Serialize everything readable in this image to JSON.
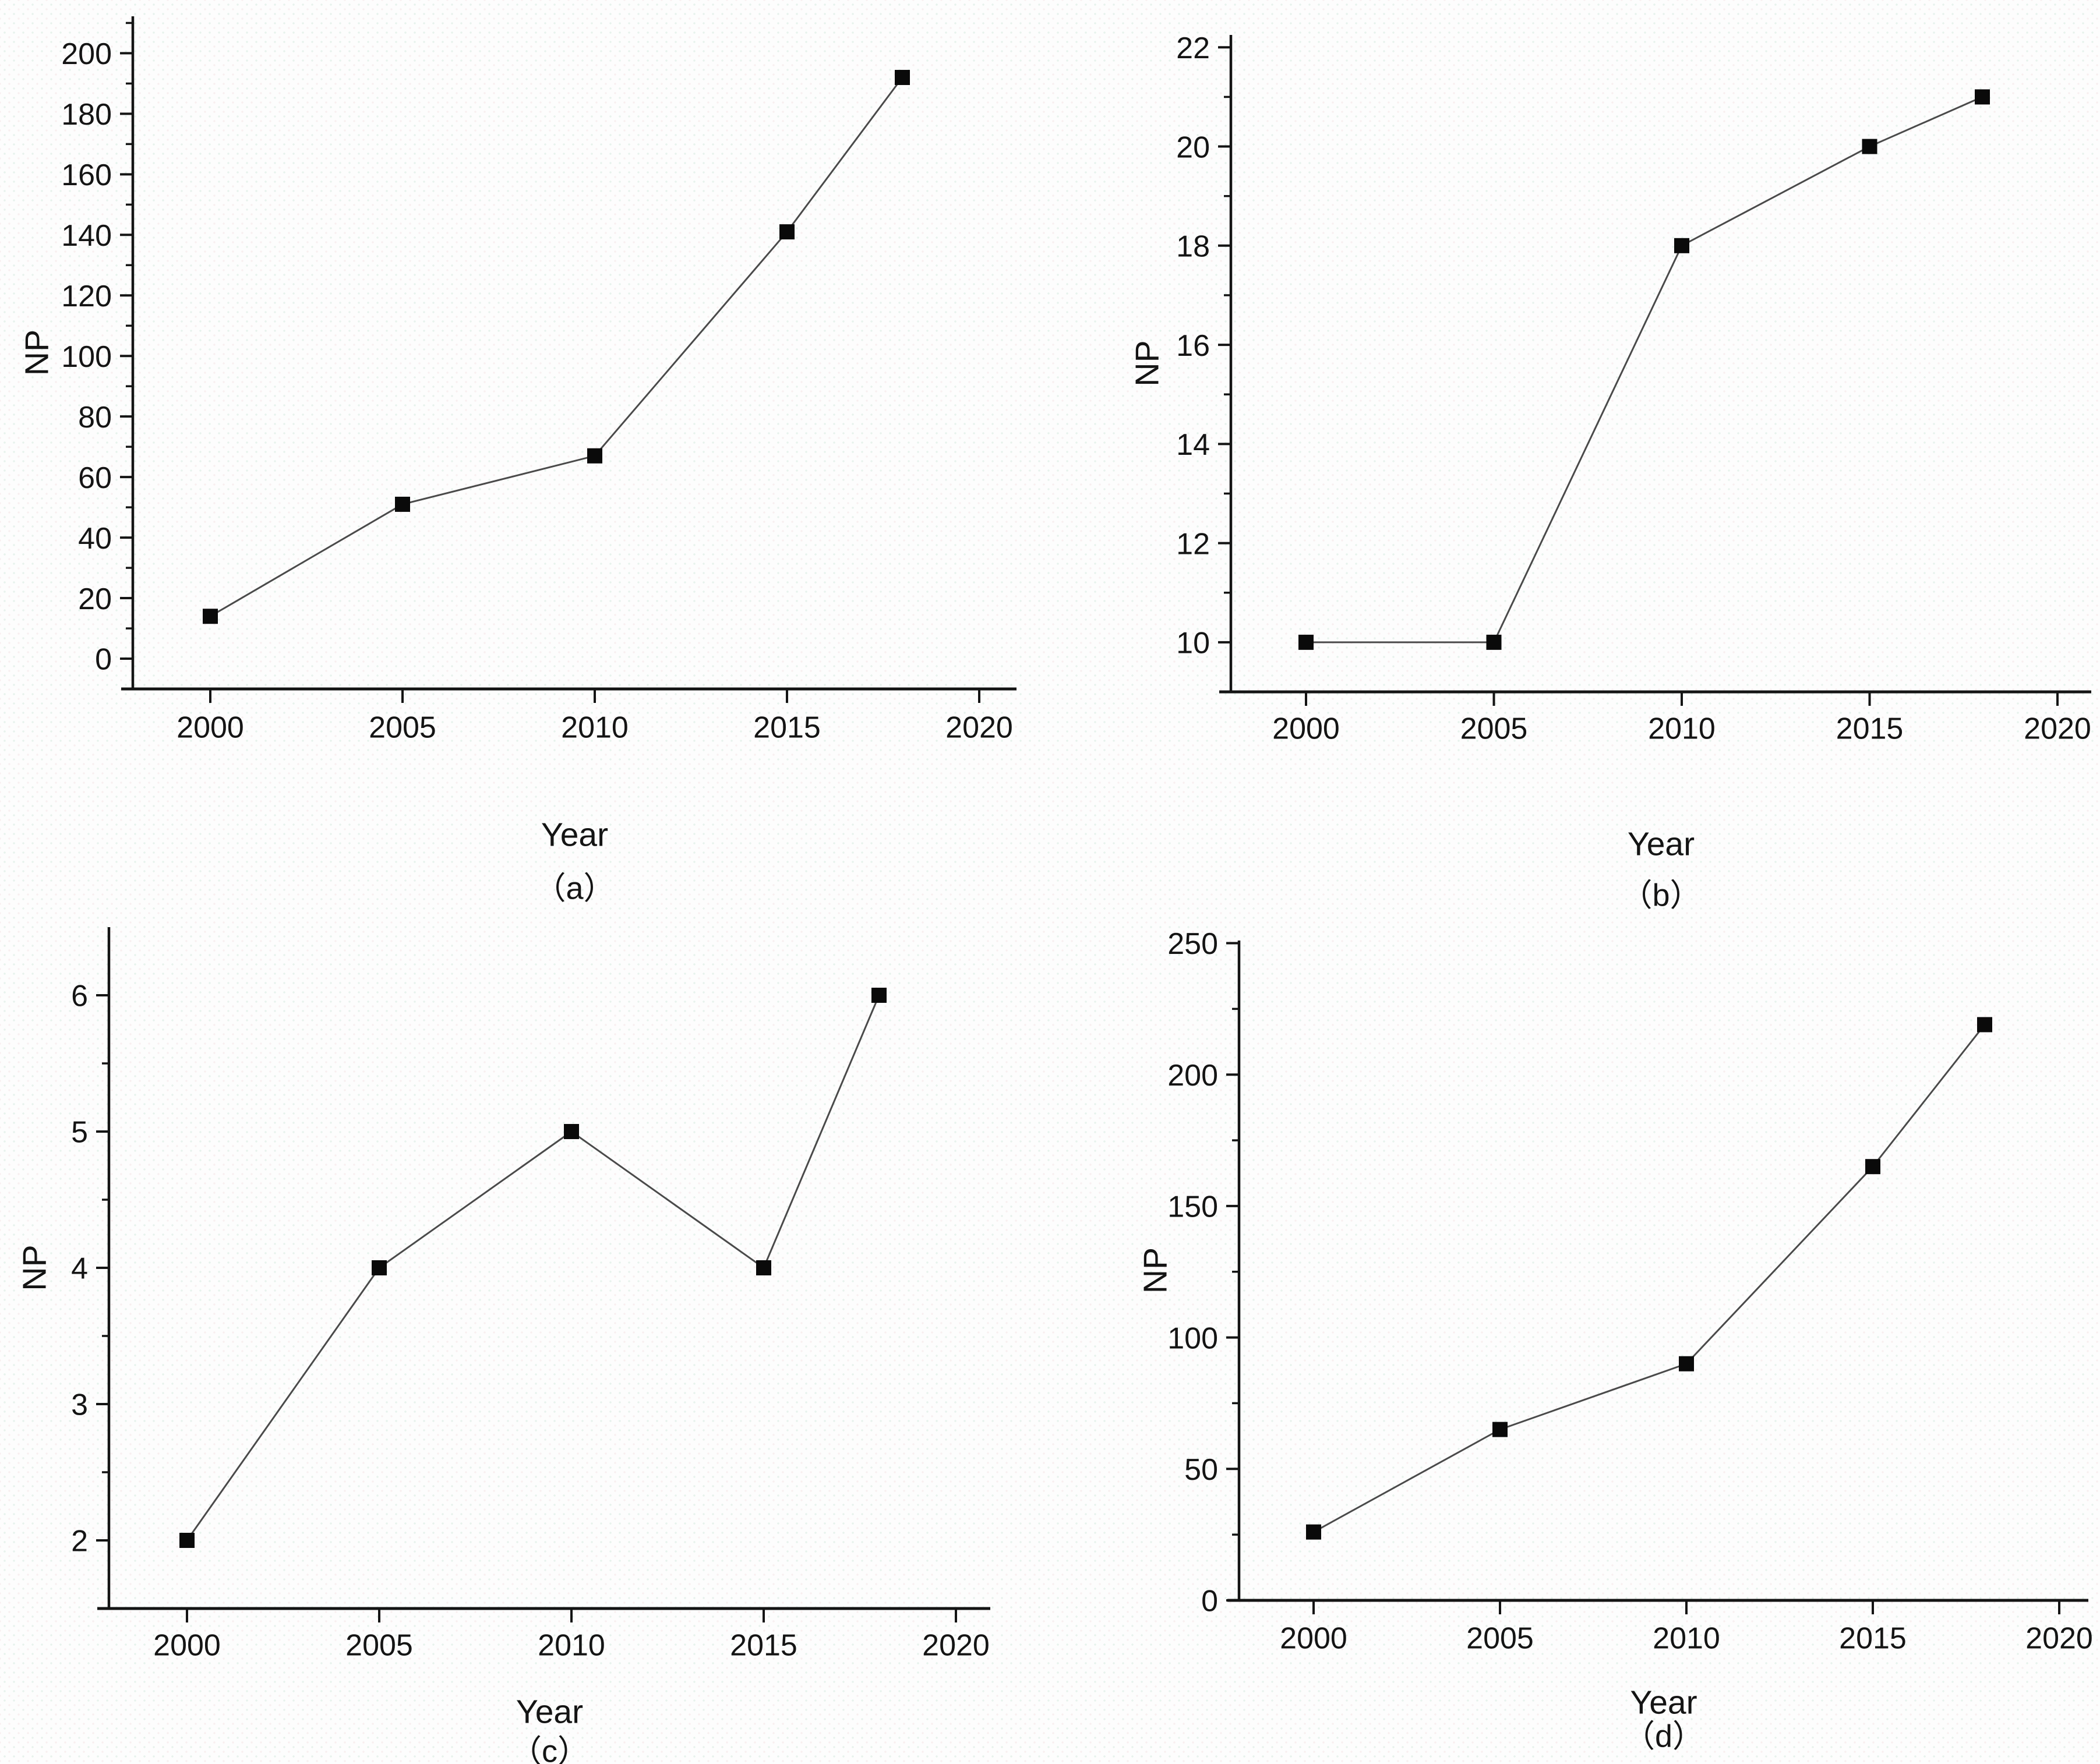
{
  "figure": {
    "description": "Four line charts of number of publications (NP) per year",
    "background_color": "#fdfdfd",
    "axis_color": "#141414",
    "line_color": "#4a4a4a",
    "marker_color": "#0a0a0a"
  },
  "chart_data": [
    {
      "id": "a",
      "panel_label": "（a）",
      "type": "line",
      "title": "",
      "xlabel": "Year",
      "ylabel": "NP",
      "x": [
        2000,
        2005,
        2010,
        2015,
        2018
      ],
      "y": [
        14,
        51,
        67,
        141,
        192
      ],
      "xticks": [
        2000,
        2005,
        2010,
        2015,
        2020
      ],
      "yticks": [
        0,
        20,
        40,
        60,
        80,
        100,
        120,
        140,
        160,
        180,
        200
      ],
      "yticks_minor": [
        10,
        30,
        50,
        70,
        90,
        110,
        130,
        150,
        170,
        190,
        210
      ],
      "xlim": [
        1998,
        2020.7
      ],
      "ylim": [
        -10,
        212.2
      ],
      "grid": false,
      "legend": null,
      "marker": "filled-square"
    },
    {
      "id": "b",
      "panel_label": "（b）",
      "type": "line",
      "title": "",
      "xlabel": "Year",
      "ylabel": "NP",
      "x": [
        2000,
        2005,
        2010,
        2015,
        2018
      ],
      "y": [
        10,
        10,
        18,
        20,
        21
      ],
      "xticks": [
        2000,
        2005,
        2010,
        2015,
        2020
      ],
      "yticks": [
        10,
        12,
        14,
        16,
        18,
        20,
        22
      ],
      "yticks_minor": [
        11,
        13,
        15,
        17,
        19,
        21
      ],
      "xlim": [
        1998,
        2020.6
      ],
      "ylim": [
        9,
        22.25
      ],
      "grid": false,
      "legend": null,
      "marker": "filled-square"
    },
    {
      "id": "c",
      "panel_label": "（c）",
      "type": "line",
      "title": "",
      "xlabel": "Year",
      "ylabel": "NP",
      "x": [
        2000,
        2005,
        2010,
        2015,
        2018
      ],
      "y": [
        2,
        4,
        5,
        4,
        6
      ],
      "xticks": [
        2000,
        2005,
        2010,
        2015,
        2020
      ],
      "yticks": [
        2,
        3,
        4,
        5,
        6
      ],
      "yticks_minor": [
        2.5,
        3.5,
        4.5,
        5.5
      ],
      "xlim": [
        1998,
        2020.9
      ],
      "ylim": [
        1.5,
        6.5
      ],
      "grid": false,
      "legend": null,
      "marker": "filled-square"
    },
    {
      "id": "d",
      "panel_label": "（d）",
      "type": "line",
      "title": "",
      "xlabel": "Year",
      "ylabel": "NP",
      "x": [
        2000,
        2005,
        2010,
        2015,
        2018
      ],
      "y": [
        26,
        65,
        90,
        165,
        219
      ],
      "xticks": [
        2000,
        2005,
        2010,
        2015,
        2020
      ],
      "yticks": [
        0,
        50,
        100,
        150,
        200,
        250
      ],
      "yticks_minor": [
        25,
        75,
        125,
        175,
        225
      ],
      "xlim": [
        1998,
        2020.4
      ],
      "ylim": [
        0,
        251
      ],
      "grid": false,
      "legend": null,
      "marker": "filled-square"
    }
  ]
}
